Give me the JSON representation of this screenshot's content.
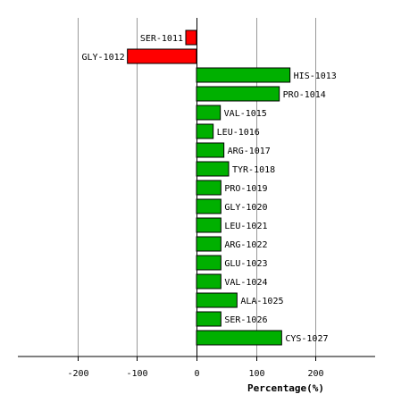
{
  "chart_data": {
    "type": "bar",
    "orientation": "horizontal",
    "title": "",
    "xlabel": "Percentage(%)",
    "ylabel": "",
    "xlim": [
      -300,
      300
    ],
    "xticks": [
      -200,
      -100,
      0,
      100,
      200
    ],
    "xtick_labels": [
      "-200",
      "-100",
      "0",
      "100",
      "200"
    ],
    "grid": "vertical",
    "colors": {
      "negative": "#ff0000",
      "positive": "#00b000",
      "grid": "#999999",
      "axis": "#000000"
    },
    "categories": [
      "SER-1011",
      "GLY-1012",
      "HIS-1013",
      "PRO-1014",
      "VAL-1015",
      "LEU-1016",
      "ARG-1017",
      "TYR-1018",
      "PRO-1019",
      "GLY-1020",
      "LEU-1021",
      "ARG-1022",
      "GLU-1023",
      "VAL-1024",
      "ALA-1025",
      "SER-1026",
      "CYS-1027"
    ],
    "values": [
      -18,
      -116,
      157,
      139,
      40,
      28,
      46,
      54,
      41,
      41,
      41,
      41,
      41,
      41,
      68,
      41,
      143
    ]
  }
}
